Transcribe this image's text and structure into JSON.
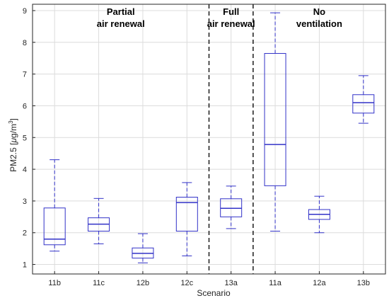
{
  "chart_data": {
    "type": "boxplot",
    "xlabel": "Scenario",
    "ylabel_main": "PM2.5 [",
    "ylabel_unit_mu": "μ",
    "ylabel_unit_g": "g/m",
    "ylabel_unit_exp": "3",
    "ylabel_close": "]",
    "ylim": [
      0.7,
      9.2
    ],
    "yticks": [
      "1",
      "2",
      "3",
      "4",
      "5",
      "6",
      "7",
      "8",
      "9"
    ],
    "grid": true,
    "categories": [
      "11b",
      "11c",
      "12b",
      "12c",
      "13a",
      "11a",
      "12a",
      "13b"
    ],
    "boxes": [
      {
        "category": "11b",
        "whisker_low": 1.42,
        "q1": 1.62,
        "median": 1.8,
        "q3": 2.78,
        "whisker_high": 4.3
      },
      {
        "category": "11c",
        "whisker_low": 1.65,
        "q1": 2.05,
        "median": 2.27,
        "q3": 2.47,
        "whisker_high": 3.08
      },
      {
        "category": "12b",
        "whisker_low": 1.05,
        "q1": 1.2,
        "median": 1.35,
        "q3": 1.52,
        "whisker_high": 1.97
      },
      {
        "category": "12c",
        "whisker_low": 1.27,
        "q1": 2.05,
        "median": 2.95,
        "q3": 3.12,
        "whisker_high": 3.58
      },
      {
        "category": "13a",
        "whisker_low": 2.13,
        "q1": 2.5,
        "median": 2.77,
        "q3": 3.07,
        "whisker_high": 3.47
      },
      {
        "category": "11a",
        "whisker_low": 2.05,
        "q1": 3.48,
        "median": 4.78,
        "q3": 7.65,
        "whisker_high": 8.93
      },
      {
        "category": "12a",
        "whisker_low": 2.0,
        "q1": 2.42,
        "median": 2.58,
        "q3": 2.73,
        "whisker_high": 3.15
      },
      {
        "category": "13b",
        "whisker_low": 5.45,
        "q1": 5.77,
        "median": 6.1,
        "q3": 6.35,
        "whisker_high": 6.95
      }
    ],
    "separators_after_category_index": [
      3.5,
      4.5
    ],
    "regions": [
      {
        "line1": "Partial",
        "line2": "air renewal"
      },
      {
        "line1": "Full",
        "line2": "air renewal"
      },
      {
        "line1": "No",
        "line2": "ventilation"
      }
    ],
    "colors": {
      "box": "#3232c8",
      "separator": "#1a1a1a",
      "axis": "#262626",
      "grid": "#dcdcdc"
    }
  }
}
